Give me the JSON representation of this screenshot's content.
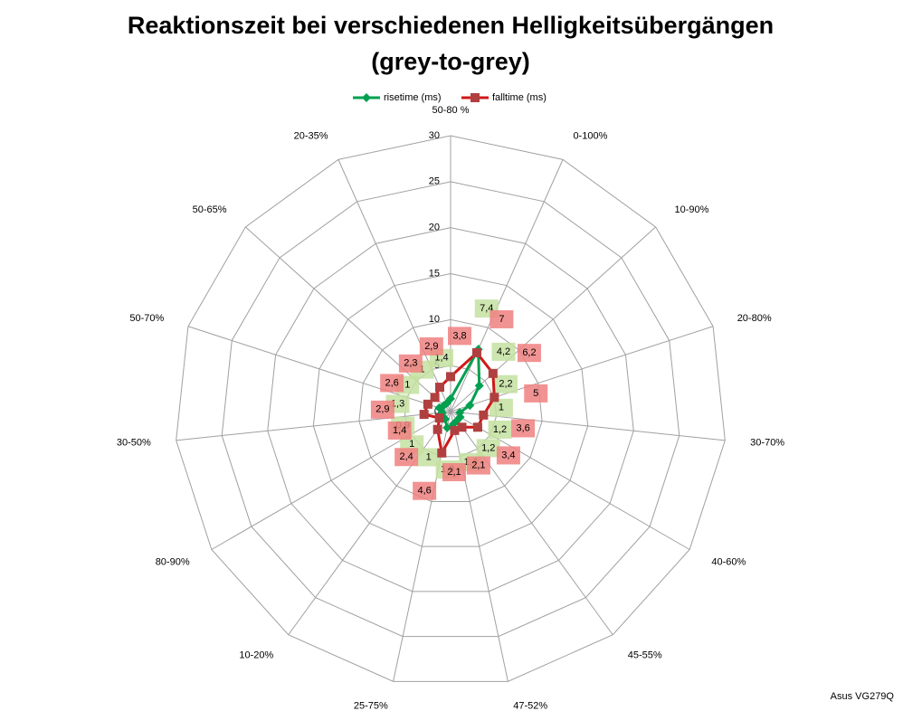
{
  "chart_data": {
    "type": "radar",
    "title": "Reaktionszeit bei verschiedenen Helligkeitsübergängen",
    "subtitle": "(grey-to-grey)",
    "annotation": "Asus VG279Q",
    "categories": [
      "50-80 %",
      "0-100%",
      "10-90%",
      "20-80%",
      "30-70%",
      "40-60%",
      "45-55%",
      "47-52%",
      "25-75%",
      "10-20%",
      "80-90%",
      "30-50%",
      "50-70%",
      "50-65%",
      "20-35%"
    ],
    "ylim": [
      0,
      30
    ],
    "yticks": [
      0,
      5,
      10,
      15,
      20,
      25,
      30
    ],
    "grid": true,
    "legend": "top",
    "series": [
      {
        "name": "risetime (ms)",
        "color": "#00a050",
        "marker": "diamond",
        "label_color": "#c4e0a0",
        "values": [
          1.4,
          7.4,
          4.2,
          2.2,
          1,
          1.2,
          1.2,
          1.4,
          1.8,
          1,
          1,
          0.9,
          1.3,
          1,
          1
        ],
        "value_labels": [
          "1,4",
          "7,4",
          "4,2",
          "2,2",
          "1",
          "1,2",
          "1,2",
          "1,4",
          "1,8",
          "1",
          "1",
          "0,9",
          "1,3",
          "1",
          "1"
        ]
      },
      {
        "name": "falltime (ms)",
        "color": "#d01818",
        "marker": "square",
        "label_color": "#f08080",
        "values": [
          3.8,
          7,
          6.2,
          5,
          3.6,
          3.4,
          2.1,
          2.1,
          4.6,
          2.4,
          1.4,
          2.9,
          2.6,
          2.3,
          2.9
        ],
        "value_labels": [
          "3,8",
          "7",
          "6,2",
          "5",
          "3,6",
          "3,4",
          "2,1",
          "2,1",
          "4,6",
          "2,4",
          "1,4",
          "2,9",
          "2,6",
          "2,3",
          "2,9"
        ]
      }
    ]
  }
}
